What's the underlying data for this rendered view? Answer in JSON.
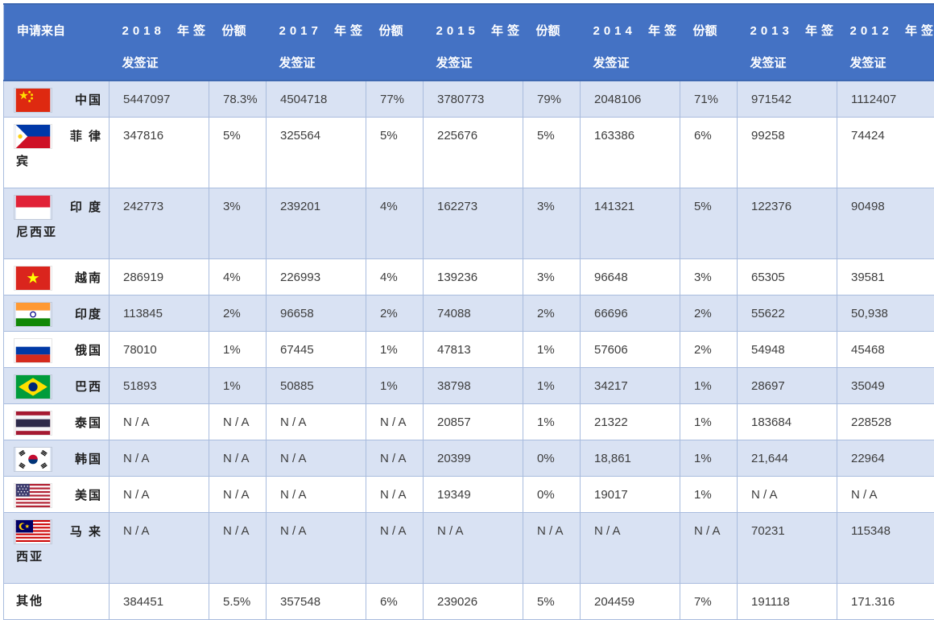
{
  "colors": {
    "header_bg": "#4472C4",
    "header_text": "#FFFFFF",
    "banded_row": "#D9E2F3",
    "grid_line": "#A9BCDE",
    "china_flag_red": "#DE2910"
  },
  "table": {
    "na_text": "N / A",
    "header": [
      {
        "lines": [
          "申请来自"
        ]
      },
      {
        "lines": [
          "2018 年签",
          "发签证"
        ]
      },
      {
        "lines": [
          "份额"
        ]
      },
      {
        "lines": [
          "2017 年签",
          "发签证"
        ]
      },
      {
        "lines": [
          "份额"
        ]
      },
      {
        "lines": [
          "2015 年签",
          "发签证"
        ]
      },
      {
        "lines": [
          "份额"
        ]
      },
      {
        "lines": [
          "2014 年签",
          "发签证"
        ]
      },
      {
        "lines": [
          "份额"
        ]
      },
      {
        "lines": [
          "2013 年签",
          "发签证"
        ]
      },
      {
        "lines": [
          "2012 年签",
          "发签证"
        ]
      }
    ],
    "rows": [
      {
        "flag": "china",
        "country": "中国",
        "country_lines": [
          "中国"
        ],
        "cells": [
          "5447097",
          "78.3%",
          "4504718",
          "77%",
          "3780773",
          "79%",
          "2048106",
          "71%",
          "971542",
          "1112407"
        ]
      },
      {
        "flag": "philippines",
        "country": "菲律宾",
        "country_lines": [
          "菲 律",
          "宾"
        ],
        "cells": [
          "347816",
          "5%",
          "325564",
          "5%",
          "225676",
          "5%",
          "163386",
          "6%",
          "99258",
          "74424"
        ]
      },
      {
        "flag": "indonesia",
        "country": "印度尼西亚",
        "country_lines": [
          "印 度",
          "尼西亚"
        ],
        "cells": [
          "242773",
          "3%",
          "239201",
          "4%",
          "162273",
          "3%",
          "141321",
          "5%",
          "122376",
          "90498"
        ]
      },
      {
        "flag": "vietnam",
        "country": "越南",
        "country_lines": [
          "越南"
        ],
        "cells": [
          "286919",
          "4%",
          "226993",
          "4%",
          "139236",
          "3%",
          "96648",
          "3%",
          "65305",
          "39581"
        ]
      },
      {
        "flag": "india",
        "country": "印度",
        "country_lines": [
          "印度"
        ],
        "cells": [
          "113845",
          "2%",
          "96658",
          "2%",
          "74088",
          "2%",
          "66696",
          "2%",
          "55622",
          "50,938"
        ]
      },
      {
        "flag": "russia",
        "country": "俄国",
        "country_lines": [
          "俄国"
        ],
        "cells": [
          "78010",
          "1%",
          "67445",
          "1%",
          "47813",
          "1%",
          "57606",
          "2%",
          "54948",
          "45468"
        ]
      },
      {
        "flag": "brazil",
        "country": "巴西",
        "country_lines": [
          "巴西"
        ],
        "cells": [
          "51893",
          "1%",
          "50885",
          "1%",
          "38798",
          "1%",
          "34217",
          "1%",
          "28697",
          "35049"
        ]
      },
      {
        "flag": "thailand",
        "country": "泰国",
        "country_lines": [
          "泰国"
        ],
        "cells": [
          "N / A",
          "N / A",
          "N / A",
          "N / A",
          "20857",
          "1%",
          "21322",
          "1%",
          "183684",
          "228528"
        ]
      },
      {
        "flag": "south-korea",
        "country": "韩国",
        "country_lines": [
          "韩国"
        ],
        "cells": [
          "N / A",
          "N / A",
          "N / A",
          "N / A",
          "20399",
          "0%",
          "18,861",
          "1%",
          "21,644",
          "22964"
        ]
      },
      {
        "flag": "usa",
        "country": "美国",
        "country_lines": [
          "美国"
        ],
        "cells": [
          "N / A",
          "N / A",
          "N / A",
          "N / A",
          "19349",
          "0%",
          "19017",
          "1%",
          "N / A",
          "N / A"
        ]
      },
      {
        "flag": "malaysia",
        "country": "马来西亚",
        "country_lines": [
          "马 来",
          "西亚"
        ],
        "cells": [
          "N / A",
          "N / A",
          "N / A",
          "N / A",
          "N / A",
          "N / A",
          "N / A",
          "N / A",
          "70231",
          "115348"
        ]
      },
      {
        "flag": null,
        "country": "其他",
        "country_lines": [
          "其他"
        ],
        "cells": [
          "384451",
          "5.5%",
          "357548",
          "6%",
          "239026",
          "5%",
          "204459",
          "7%",
          "191118",
          "171.316"
        ]
      }
    ]
  }
}
